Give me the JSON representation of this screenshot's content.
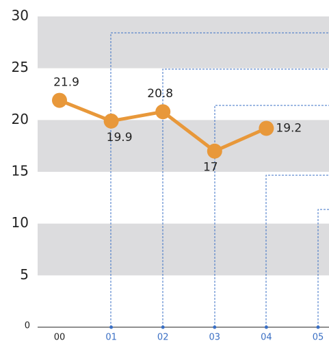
{
  "chart_data": {
    "type": "line",
    "categories": [
      "00",
      "01",
      "02",
      "03",
      "04",
      "05"
    ],
    "series": [
      {
        "color": "#e8983a",
        "values": [
          21.9,
          19.9,
          20.8,
          17,
          19.2,
          null
        ]
      }
    ],
    "ylim": [
      0,
      30
    ],
    "yticks": [
      0,
      5,
      10,
      15,
      20,
      25,
      30
    ],
    "grid": true
  }
}
